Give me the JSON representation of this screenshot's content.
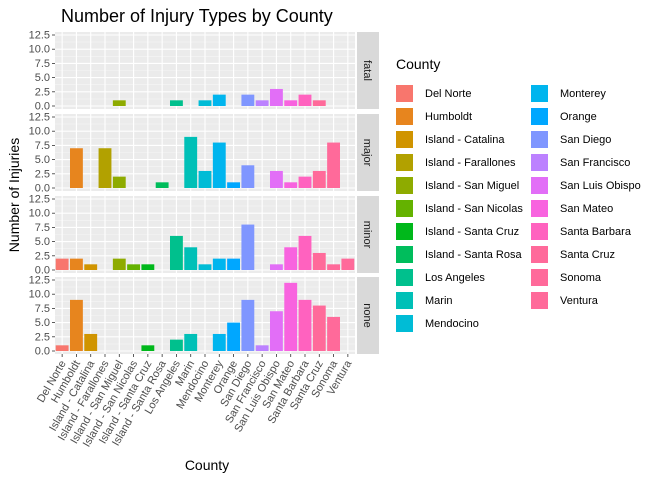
{
  "chart_data": {
    "type": "bar",
    "title": "Number of Injury Types by County",
    "xlabel": "County",
    "ylabel": "Number of Injuries",
    "ylim": [
      0,
      12.5
    ],
    "yticks": [
      "0.0",
      "2.5",
      "5.0",
      "7.5",
      "10.0",
      "12.5"
    ],
    "grid": true,
    "legend_position": "right",
    "legend_title": "County",
    "categories": [
      "Del Norte",
      "Humboldt",
      "Island - Catalina",
      "Island - Farallones",
      "Island - San Miguel",
      "Island - San Nicolas",
      "Island - Santa Cruz",
      "Island - Santa Rosa",
      "Los Angeles",
      "Marin",
      "Mendocino",
      "Monterey",
      "Orange",
      "San Diego",
      "San Francisco",
      "San Luis Obispo",
      "San Mateo",
      "Santa Barbara",
      "Santa Cruz",
      "Sonoma",
      "Ventura"
    ],
    "colors": [
      "#F8766D",
      "#E7851E",
      "#D09400",
      "#B2A100",
      "#8EAB00",
      "#64B200",
      "#00B81B",
      "#00BD5C",
      "#00C08D",
      "#00C0B7",
      "#00BCD6",
      "#00B5EE",
      "#00A7FF",
      "#7F96FF",
      "#BC81FF",
      "#E26EF7",
      "#F863DF",
      "#FF62BF",
      "#FF6A9A",
      "#FF6A9A",
      "#FF6A9A"
    ],
    "facets": [
      {
        "name": "fatal",
        "values": [
          0,
          0,
          0,
          0,
          1,
          0,
          0,
          0,
          1,
          0,
          1,
          2,
          0,
          2,
          1,
          3,
          1,
          2,
          1,
          0,
          0
        ]
      },
      {
        "name": "major",
        "values": [
          0,
          7,
          0,
          7,
          2,
          0,
          0,
          1,
          0,
          9,
          3,
          8,
          1,
          4,
          0,
          3,
          1,
          2,
          3,
          8,
          0
        ]
      },
      {
        "name": "minor",
        "values": [
          2,
          2,
          1,
          0,
          2,
          1,
          1,
          0,
          6,
          4,
          1,
          2,
          2,
          8,
          0,
          1,
          4,
          6,
          3,
          1,
          2
        ]
      },
      {
        "name": "none",
        "values": [
          1,
          9,
          3,
          0,
          0,
          0,
          1,
          0,
          2,
          3,
          0,
          3,
          5,
          9,
          1,
          7,
          12,
          9,
          8,
          6,
          0
        ]
      }
    ]
  }
}
